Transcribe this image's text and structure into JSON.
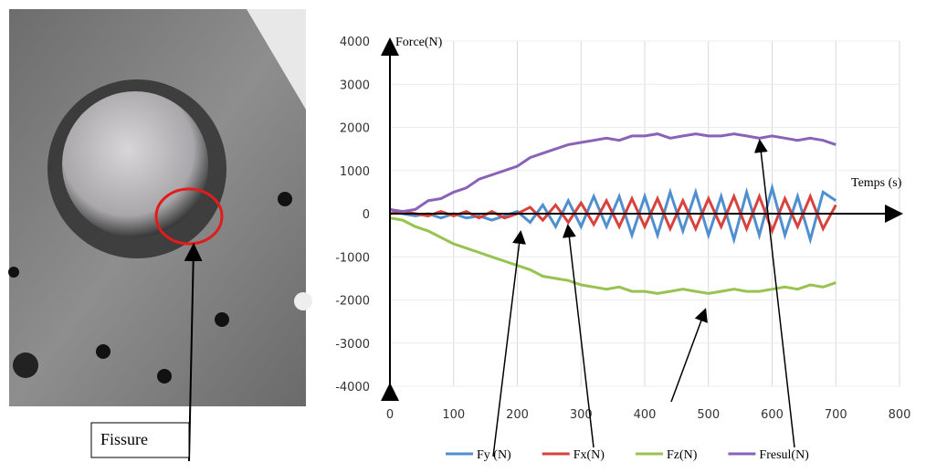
{
  "photo": {
    "label": "Fissure"
  },
  "chart_data": {
    "type": "line",
    "y_label": "Force(N)",
    "x_label": "Temps (s)",
    "x": [
      0,
      20,
      40,
      60,
      80,
      100,
      120,
      140,
      160,
      180,
      200,
      220,
      240,
      260,
      280,
      300,
      320,
      340,
      360,
      380,
      400,
      420,
      440,
      460,
      480,
      500,
      520,
      540,
      560,
      580,
      600,
      620,
      640,
      660,
      680,
      700
    ],
    "series": [
      {
        "name": "Fy (N)",
        "color": "#4f8fd0",
        "values": [
          100,
          0,
          -50,
          0,
          -100,
          0,
          -100,
          -50,
          -150,
          -50,
          50,
          -200,
          200,
          -300,
          300,
          -300,
          400,
          -300,
          400,
          -500,
          400,
          -500,
          500,
          -400,
          500,
          -500,
          400,
          -600,
          500,
          -500,
          600,
          -500,
          400,
          -600,
          500,
          300
        ]
      },
      {
        "name": "Fx(N)",
        "color": "#d9413d",
        "values": [
          0,
          50,
          0,
          -50,
          50,
          -50,
          50,
          -100,
          50,
          -100,
          0,
          150,
          -150,
          200,
          -200,
          250,
          -250,
          300,
          -300,
          350,
          -300,
          350,
          -350,
          300,
          -350,
          350,
          -300,
          400,
          -350,
          400,
          -400,
          350,
          -300,
          400,
          -350,
          200
        ]
      },
      {
        "name": "Fz(N)",
        "color": "#98c251",
        "values": [
          -100,
          -150,
          -300,
          -400,
          -550,
          -700,
          -800,
          -900,
          -1000,
          -1100,
          -1200,
          -1300,
          -1450,
          -1500,
          -1550,
          -1650,
          -1700,
          -1750,
          -1700,
          -1800,
          -1800,
          -1850,
          -1800,
          -1750,
          -1800,
          -1850,
          -1800,
          -1750,
          -1800,
          -1800,
          -1750,
          -1700,
          -1750,
          -1650,
          -1700,
          -1600
        ]
      },
      {
        "name": "Fresul(N)",
        "color": "#8a63b8",
        "values": [
          100,
          50,
          100,
          300,
          350,
          500,
          600,
          800,
          900,
          1000,
          1100,
          1300,
          1400,
          1500,
          1600,
          1650,
          1700,
          1750,
          1700,
          1800,
          1800,
          1850,
          1750,
          1800,
          1850,
          1800,
          1800,
          1850,
          1800,
          1750,
          1800,
          1750,
          1700,
          1750,
          1700,
          1600
        ]
      }
    ],
    "xlim": [
      0,
      800
    ],
    "xticks": [
      0,
      100,
      200,
      300,
      400,
      500,
      600,
      700,
      800
    ],
    "ylim": [
      -4000,
      4000
    ],
    "yticks": [
      -4000,
      -3000,
      -2000,
      -1000,
      0,
      1000,
      2000,
      3000,
      4000
    ],
    "grid": true
  }
}
